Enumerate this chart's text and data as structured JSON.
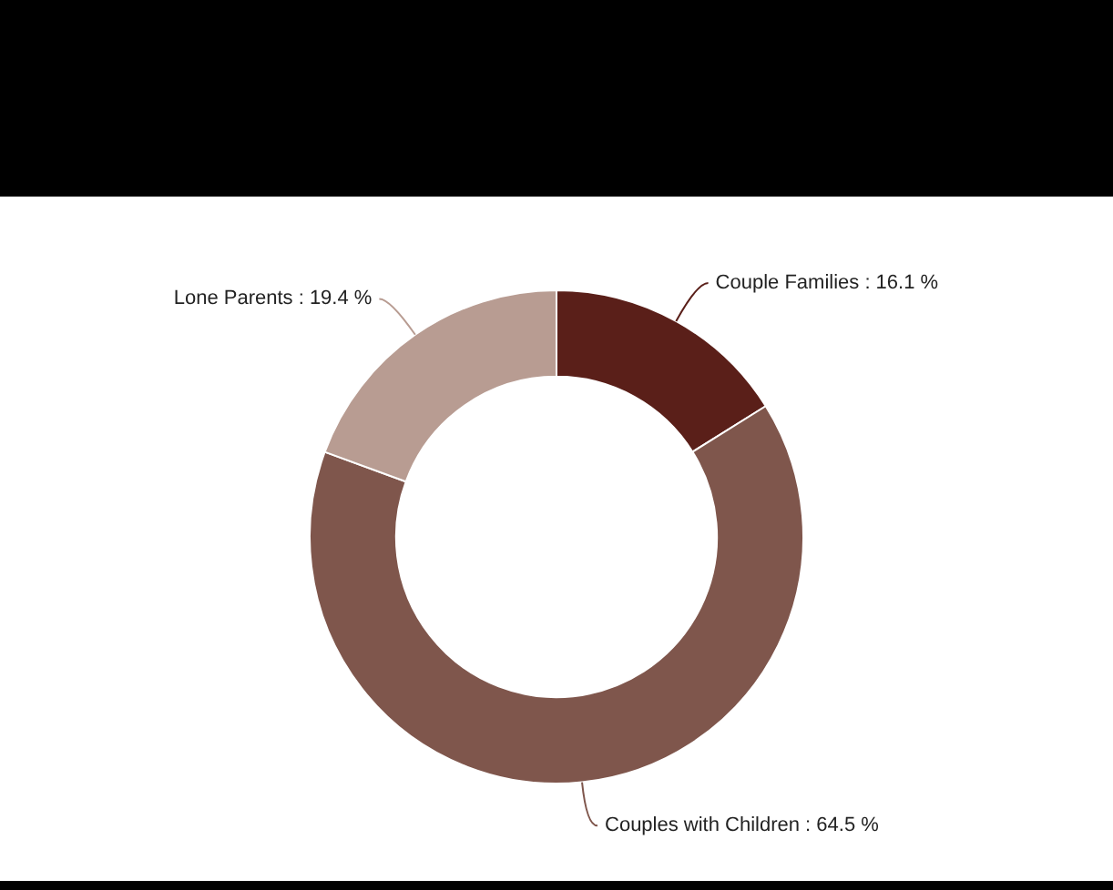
{
  "chart_data": {
    "type": "donut",
    "categories": [
      "Couple Families",
      "Couples with Children",
      "Lone Parents"
    ],
    "values": [
      16.1,
      64.5,
      19.4
    ],
    "colors": [
      "#5a1f19",
      "#7f564c",
      "#b89c92"
    ],
    "value_labels": [
      "16.1 %",
      "64.5 %",
      "19.4 %"
    ],
    "legend": false
  }
}
